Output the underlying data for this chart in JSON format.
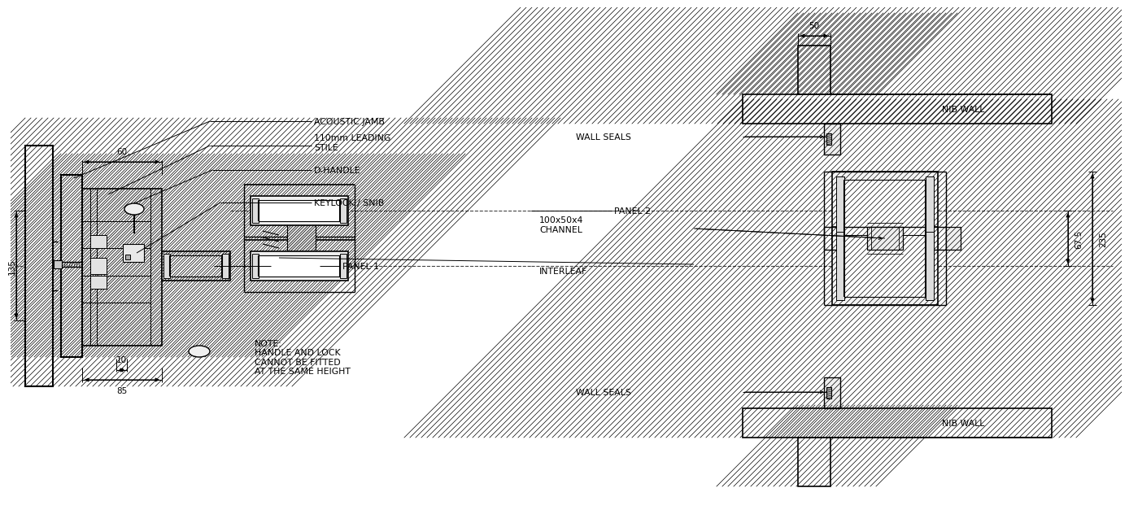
{
  "bg_color": "#ffffff",
  "line_color": "#000000",
  "labels": {
    "acoustic_jamb": "ACOUSTIC JAMB",
    "leading_stile": "110mm LEADING\nSTILE",
    "d_handle": "D-HANDLE",
    "keylock": "KEYLOCK / SNIB",
    "panel1": "PANEL 1",
    "panel2": "PANEL 2",
    "wall_seals_top": "WALL SEALS",
    "wall_seals_bot": "WALL SEALS",
    "nib_wall_top": "NIB WALL",
    "nib_wall_bot": "NIB WALL",
    "channel": "100x50x4\nCHANNEL",
    "interleaf": "INTERLEAF",
    "note": "NOTE:\nHANDLE AND LOCK\nCANNOT BE FITTED\nAT THE SAME HEIGHT"
  },
  "dims": {
    "dim_60": "60",
    "dim_135": "135",
    "dim_10": "10",
    "dim_85": "85",
    "dim_50": "50",
    "dim_67_5": "67.5",
    "dim_235": "235"
  }
}
